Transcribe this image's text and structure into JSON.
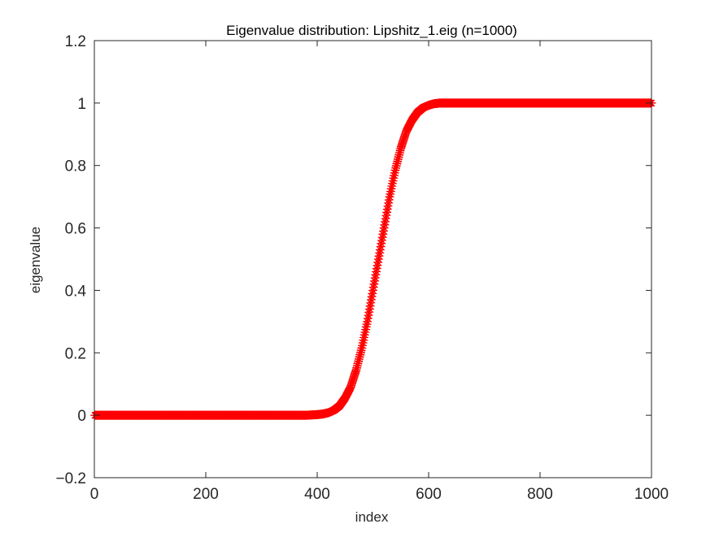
{
  "chart_data": {
    "type": "scatter",
    "title": "Eigenvalue distribution: Lipshitz_1.eig (n=1000)",
    "xlabel": "index",
    "ylabel": "eigenvalue",
    "xlim": [
      0,
      1000
    ],
    "ylim": [
      -0.2,
      1.2
    ],
    "x_ticks": [
      0,
      200,
      400,
      600,
      800,
      1000
    ],
    "y_ticks": [
      -0.2,
      0,
      0.2,
      0.4,
      0.6,
      0.8,
      1,
      1.2
    ],
    "x_tick_labels": [
      "0",
      "200",
      "400",
      "600",
      "800",
      "1000"
    ],
    "y_tick_labels": [
      "−0.2",
      "0",
      "0.2",
      "0.4",
      "0.6",
      "0.8",
      "1",
      "1.2"
    ],
    "grid": false,
    "marker": "asterisk",
    "marker_color": "#ff0000",
    "series": [
      {
        "n": 1000,
        "x": [
          0,
          100,
          200,
          300,
          380,
          400,
          410,
          420,
          430,
          440,
          450,
          460,
          470,
          480,
          490,
          500,
          510,
          520,
          530,
          540,
          550,
          560,
          570,
          580,
          590,
          600,
          610,
          620,
          650,
          700,
          800,
          900,
          1000
        ],
        "values": [
          0,
          0,
          0,
          0,
          0,
          0.002,
          0.004,
          0.008,
          0.016,
          0.03,
          0.055,
          0.09,
          0.145,
          0.215,
          0.3,
          0.4,
          0.5,
          0.6,
          0.7,
          0.785,
          0.855,
          0.91,
          0.945,
          0.97,
          0.985,
          0.993,
          0.998,
          1,
          1,
          1,
          1,
          1,
          1
        ]
      }
    ]
  }
}
